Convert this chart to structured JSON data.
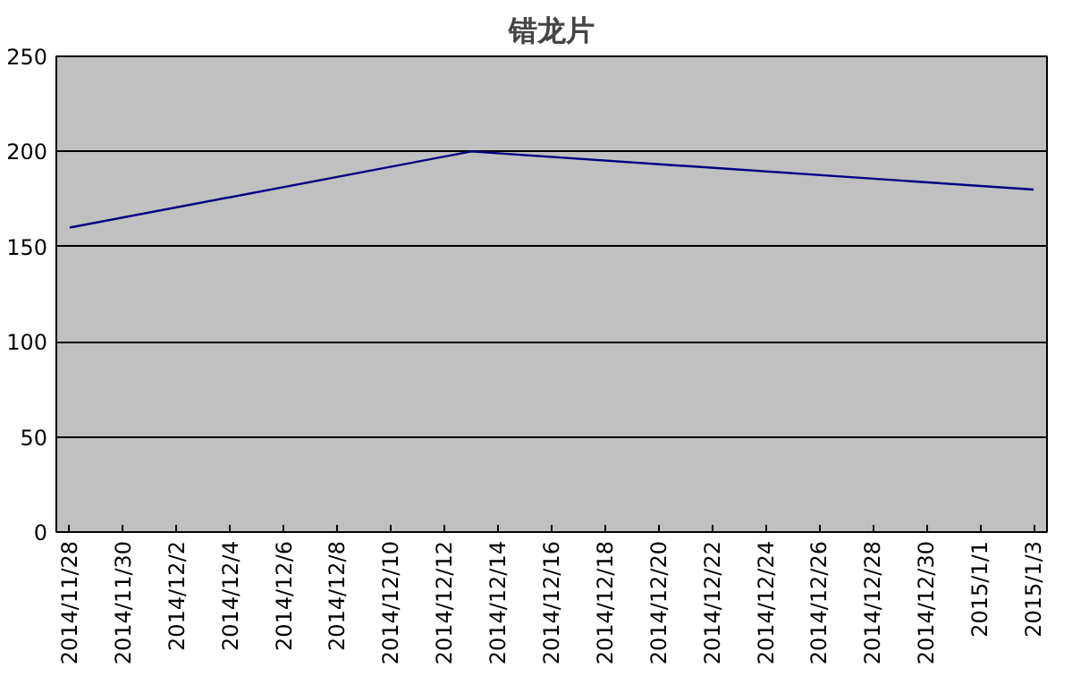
{
  "chart_data": {
    "type": "line",
    "title": "错龙片",
    "series": [
      {
        "color": "#000080",
        "x": [
          "2014-11-28",
          "2014-12-13",
          "2015-01-03"
        ],
        "values": [
          160,
          200,
          180
        ]
      }
    ],
    "xlim": [
      "2014-11-27T12:00",
      "2015-01-03T12:00"
    ],
    "xticks": [
      {
        "value": "2014-11-28",
        "label": "2014/11/28"
      },
      {
        "value": "2014-11-30",
        "label": "2014/11/30"
      },
      {
        "value": "2014-12-02",
        "label": "2014/12/2"
      },
      {
        "value": "2014-12-04",
        "label": "2014/12/4"
      },
      {
        "value": "2014-12-06",
        "label": "2014/12/6"
      },
      {
        "value": "2014-12-08",
        "label": "2014/12/8"
      },
      {
        "value": "2014-12-10",
        "label": "2014/12/10"
      },
      {
        "value": "2014-12-12",
        "label": "2014/12/12"
      },
      {
        "value": "2014-12-14",
        "label": "2014/12/14"
      },
      {
        "value": "2014-12-16",
        "label": "2014/12/16"
      },
      {
        "value": "2014-12-18",
        "label": "2014/12/18"
      },
      {
        "value": "2014-12-20",
        "label": "2014/12/20"
      },
      {
        "value": "2014-12-22",
        "label": "2014/12/22"
      },
      {
        "value": "2014-12-24",
        "label": "2014/12/24"
      },
      {
        "value": "2014-12-26",
        "label": "2014/12/26"
      },
      {
        "value": "2014-12-28",
        "label": "2014/12/28"
      },
      {
        "value": "2014-12-30",
        "label": "2014/12/30"
      },
      {
        "value": "2015-01-01",
        "label": "2015/1/1"
      },
      {
        "value": "2015-01-03",
        "label": "2015/1/3"
      }
    ],
    "ylim": [
      0,
      250
    ],
    "yticks": [
      0,
      50,
      100,
      150,
      200,
      250
    ],
    "grid": "y",
    "marker": "none",
    "line_style": "solid"
  }
}
